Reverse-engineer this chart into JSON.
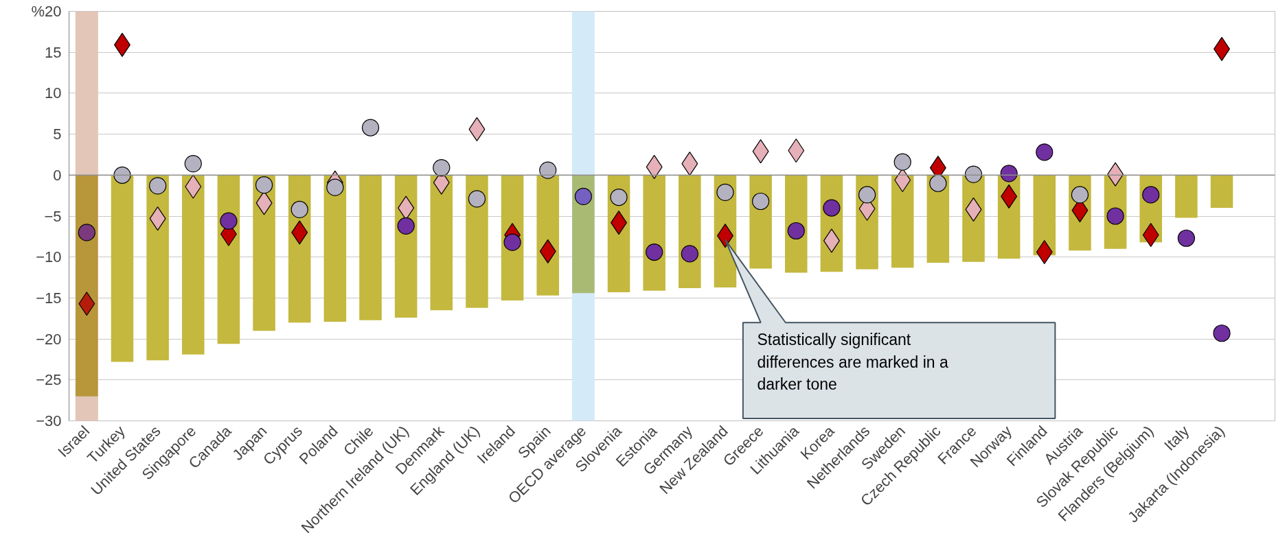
{
  "chart_data": {
    "type": "bar",
    "categories": [
      "Israel",
      "Turkey",
      "United States",
      "Singapore",
      "Canada",
      "Japan",
      "Cyprus",
      "Poland",
      "Chile",
      "Northern Ireland (UK)",
      "Denmark",
      "England (UK)",
      "Ireland",
      "Spain",
      "OECD average",
      "Slovenia",
      "Estonia",
      "Germany",
      "New Zealand",
      "Greece",
      "Lithuania",
      "Korea",
      "Netherlands",
      "Sweden",
      "Czech Republic",
      "France",
      "Norway",
      "Finland",
      "Austria",
      "Slovak Republic",
      "Flanders (Belgium)",
      "Italy",
      "Jakarta (Indonesia)"
    ],
    "series": [
      {
        "values": [
          -27.0,
          -22.8,
          -22.6,
          -21.9,
          -20.6,
          -19.0,
          -18.0,
          -17.9,
          -17.7,
          -17.4,
          -16.5,
          -16.2,
          -15.3,
          -14.7,
          -14.4,
          -14.3,
          -14.1,
          -13.8,
          -13.7,
          -11.4,
          -11.9,
          -11.8,
          -11.5,
          -11.3,
          -10.7,
          -10.6,
          -10.2,
          -9.8,
          -9.2,
          -9.0,
          -8.2,
          -5.2,
          -4.0
        ],
        "colors": [
          "#b8963a",
          "#c4b83e",
          "#c4b83e",
          "#c4b83e",
          "#c4b83e",
          "#c4b83e",
          "#c4b83e",
          "#c4b83e",
          "#c4b83e",
          "#c4b83e",
          "#c4b83e",
          "#c4b83e",
          "#c4b83e",
          "#c4b83e",
          "#a9bb73",
          "#c4b83e",
          "#c4b83e",
          "#c4b83e",
          "#c4b83e",
          "#c4b83e",
          "#c4b83e",
          "#c4b83e",
          "#c4b83e",
          "#c4b83e",
          "#c4b83e",
          "#c4b83e",
          "#c4b83e",
          "#c4b83e",
          "#c4b83e",
          "#c4b83e",
          "#c4b83e",
          "#c4b83e",
          "#c4b83e"
        ]
      },
      {
        "type": "scatter",
        "marker": "diamond",
        "values": [
          -15.7,
          15.9,
          -5.3,
          -1.4,
          -7.2,
          -3.4,
          -7.0,
          -0.9,
          null,
          -4.0,
          -0.9,
          5.6,
          -7.3,
          -9.3,
          null,
          -5.8,
          1.0,
          1.4,
          -7.4,
          2.9,
          3.0,
          -8.0,
          -4.1,
          -0.6,
          0.9,
          -4.2,
          -2.6,
          -9.4,
          -4.3,
          0.1,
          -7.3,
          null,
          15.4
        ],
        "colors": [
          "#b51c0c",
          "#c00000",
          "#e6b0b8",
          "#e6b0b8",
          "#c00000",
          "#e6b0b8",
          "#c00000",
          "#e6b0b8",
          null,
          "#e6b0b8",
          "#e6b0b8",
          "#e6b0b8",
          "#c00000",
          "#c00000",
          null,
          "#c00000",
          "#e6b0b8",
          "#e6b0b8",
          "#c00000",
          "#e6b0b8",
          "#e6b0b8",
          "#e6b0b8",
          "#e6b0b8",
          "#e6b0b8",
          "#c00000",
          "#e6b0b8",
          "#c00000",
          "#c00000",
          "#c00000",
          "#e6b0b8",
          "#c00000",
          null,
          "#c00000"
        ]
      },
      {
        "type": "scatter",
        "marker": "circle",
        "values": [
          -7.0,
          0.0,
          -1.3,
          1.4,
          -5.6,
          -1.2,
          -4.2,
          -1.5,
          5.8,
          -6.2,
          0.9,
          -2.9,
          -8.2,
          0.6,
          -2.6,
          -2.7,
          -9.4,
          -9.6,
          -2.1,
          -3.2,
          -6.8,
          -4.0,
          -2.4,
          1.6,
          -1.0,
          0.1,
          0.2,
          2.8,
          -2.4,
          -5.0,
          -2.4,
          -7.7,
          -19.3
        ],
        "colors": [
          "#7b3a7e",
          "#b4b2c0",
          "#b4b2c0",
          "#b4b2c0",
          "#7030a0",
          "#b4b2c0",
          "#b4b2c0",
          "#b4b2c0",
          "#b4b2c0",
          "#7030a0",
          "#b4b2c0",
          "#b4b2c0",
          "#7030a0",
          "#b4b2c0",
          "#7360c0",
          "#b4b2c0",
          "#7030a0",
          "#7030a0",
          "#b4b2c0",
          "#b4b2c0",
          "#7030a0",
          "#7030a0",
          "#b4b2c0",
          "#b4b2c0",
          "#b4b2c0",
          "#b4b2c0",
          "#7030a0",
          "#7030a0",
          "#b4b2c0",
          "#7030a0",
          "#7030a0",
          "#7030a0",
          "#7030a0"
        ]
      }
    ],
    "ylim": [
      -30,
      20
    ],
    "yticks": [
      {
        "value": 20,
        "label": "%20"
      },
      15,
      10,
      5,
      0,
      -5,
      -10,
      -15,
      -20,
      -25,
      -30
    ],
    "grid": "y",
    "bands": [
      {
        "axis": "x",
        "from": "Israel",
        "to": "Israel",
        "color": "#e3c6b8"
      },
      {
        "axis": "x",
        "from": "OECD average",
        "to": "OECD average",
        "color": "#d4eaf8"
      }
    ],
    "annotations": [
      "Statistically significant differences are marked in a darker tone"
    ]
  }
}
